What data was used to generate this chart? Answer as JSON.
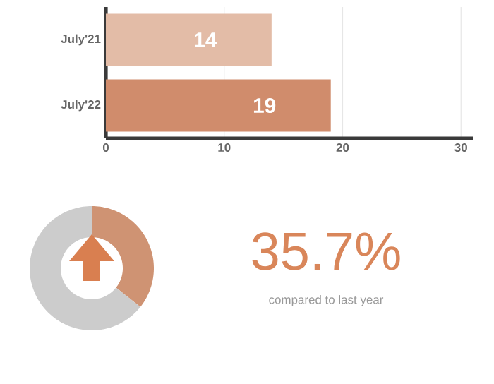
{
  "chart_data": [
    {
      "type": "bar",
      "orientation": "horizontal",
      "categories": [
        "July'21",
        "July'22"
      ],
      "values": [
        14,
        19
      ],
      "colors": [
        "#e3bca7",
        "#d08c6c"
      ],
      "xlim": [
        0,
        31
      ],
      "xticks": [
        0,
        10,
        20,
        30
      ],
      "grid": "x",
      "data_labels": true
    },
    {
      "type": "donut",
      "categories": [
        null,
        null
      ],
      "values": [
        35.7,
        64.3
      ],
      "colors": [
        "#cf9373",
        "#cccccc"
      ],
      "annotations": [
        "35.7%",
        "compared to last year"
      ]
    }
  ]
}
